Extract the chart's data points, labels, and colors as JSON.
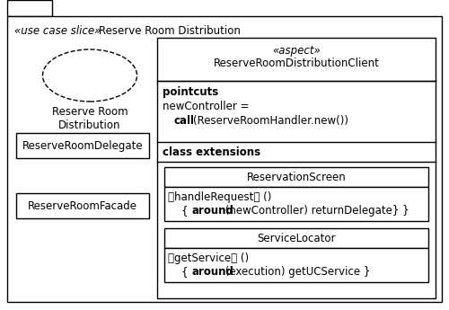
{
  "bg_color": "#ffffff",
  "border_color": "#000000",
  "title_stereotype": "«use case slice»",
  "title_name": "Reserve Room Distribution",
  "aspect_stereotype": "«aspect»",
  "aspect_name": "ReserveRoomDistributionClient",
  "pointcuts_label": "pointcuts",
  "newcontroller_line1": "newController =",
  "newcontroller_line2_bold": "call",
  "newcontroller_line2_normal": "(ReserveRoomHandler.new())",
  "class_ext_label": "class extensions",
  "reservation_screen_label": "ReservationScreen",
  "handle_request_line1": "〈handleRequest〉 ()",
  "handle_request_line2_prefix": "    {",
  "handle_request_around": "around",
  "handle_request_suffix": " (newController) returnDelegate} }",
  "service_locator_label": "ServiceLocator",
  "get_service_line1": "〈getService〉 ()",
  "get_service_line2_prefix": "    {",
  "get_service_around": "around",
  "get_service_suffix": " (execution) getUCService }",
  "delegate_label": "ReserveRoomDelegate",
  "facade_label": "ReserveRoomFacade",
  "ellipse_label": "Reserve Room\nDistribution",
  "font_size": 8.5,
  "font_size_bold": 8.5
}
